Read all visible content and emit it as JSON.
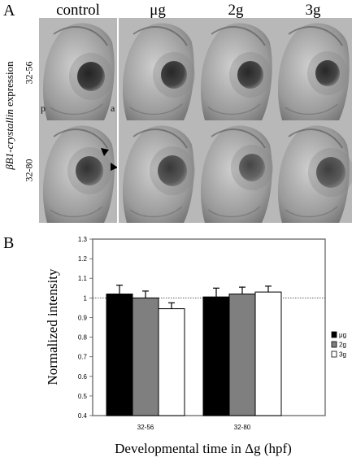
{
  "panel_a": {
    "letter": "A",
    "columns": [
      "control",
      "μg",
      "2g",
      "3g"
    ],
    "rows": [
      "32-56",
      "32-80"
    ],
    "expression_label_italic": "βB1-crystallin",
    "expression_label_rest": " expression",
    "orientation_posterior": "p",
    "orientation_anterior": "a"
  },
  "panel_b": {
    "letter": "B"
  },
  "chart_data": {
    "type": "bar",
    "categories": [
      "32-56",
      "32-80"
    ],
    "series": [
      {
        "name": "μg",
        "values": [
          1.02,
          1.005
        ],
        "errors": [
          0.045,
          0.045
        ],
        "color": "#000000"
      },
      {
        "name": "2g",
        "values": [
          1.0,
          1.02
        ],
        "errors": [
          0.035,
          0.035
        ],
        "color": "#7f7f7f"
      },
      {
        "name": "3g",
        "values": [
          0.945,
          1.03
        ],
        "errors": [
          0.03,
          0.03
        ],
        "color": "#ffffff"
      }
    ],
    "ylabel": "Normalized intensity",
    "xlabel": "Developmental time in Δg (hpf)",
    "ylim": [
      0.4,
      1.3
    ],
    "yticks": [
      "0.4",
      "0.5",
      "0.6",
      "0.7",
      "0.8",
      "0.9",
      "1",
      "1.1",
      "1.2",
      "1.3"
    ],
    "reference_line": 1.0,
    "legend_position": "right"
  }
}
